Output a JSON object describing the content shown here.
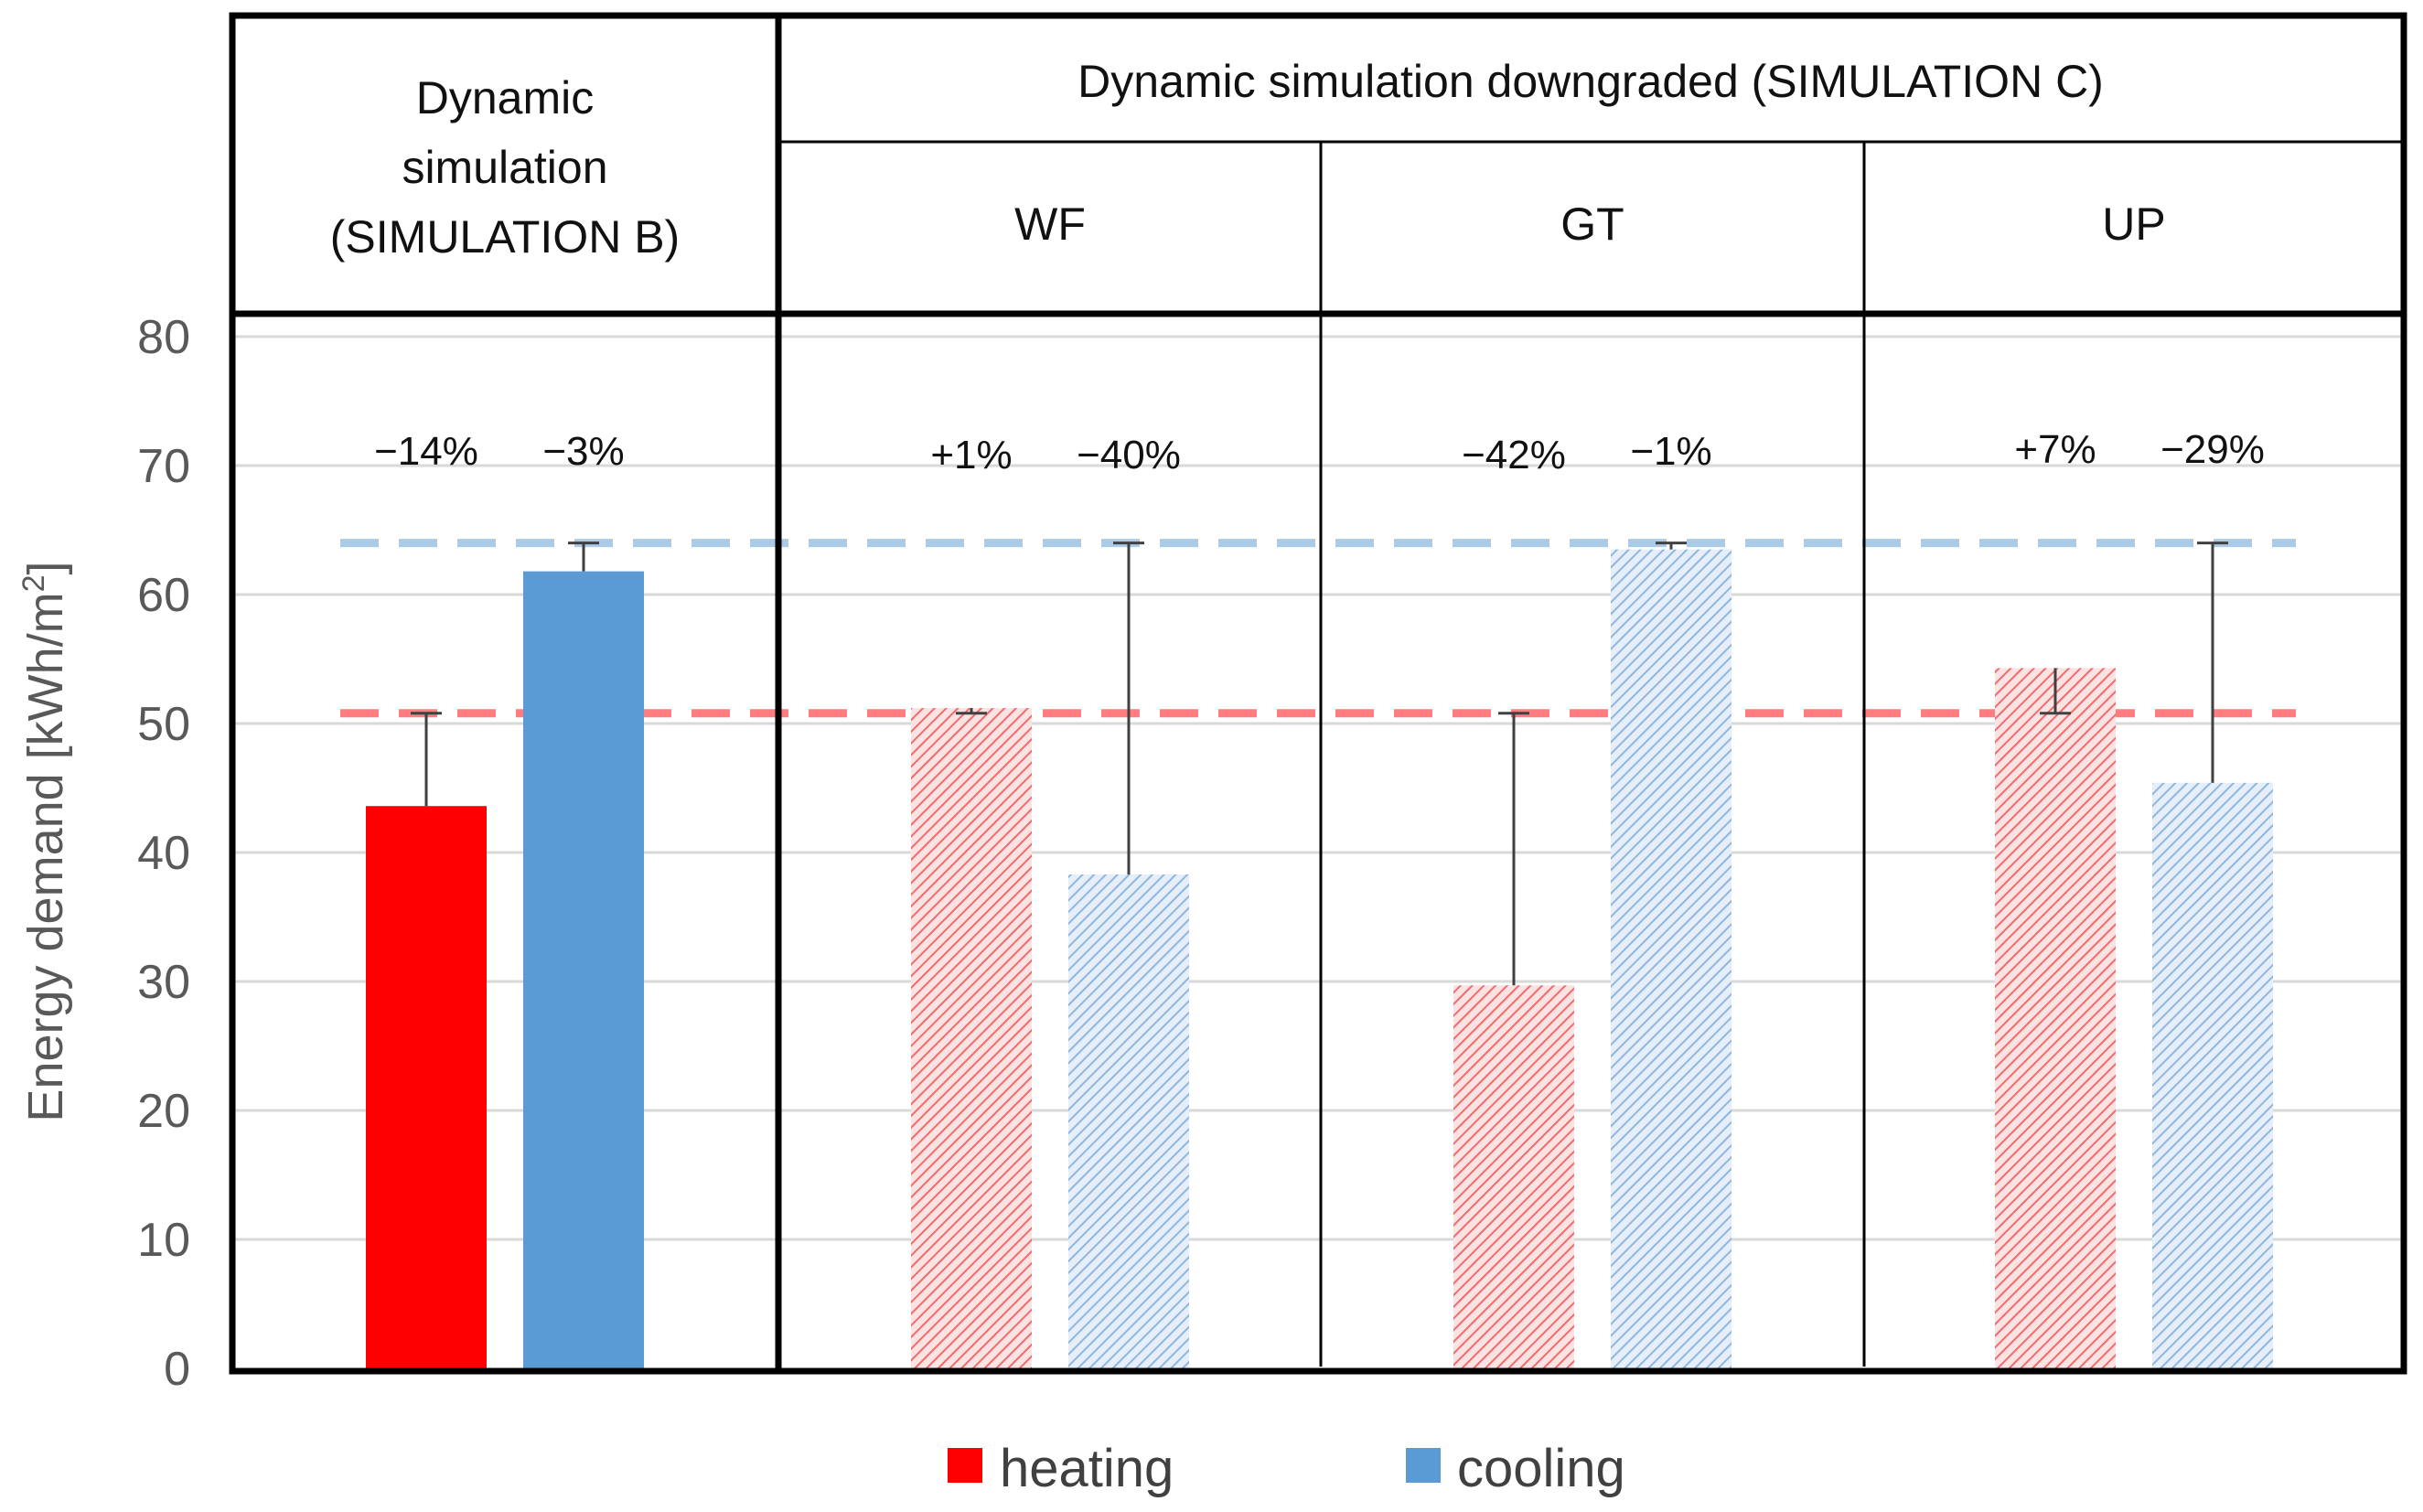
{
  "chart_data": {
    "type": "bar",
    "ylabel": "Energy demand [kWh/m",
    "ylabel_sup": "2",
    "ylabel_close": "]",
    "ylim": [
      0,
      80
    ],
    "yticks": [
      0,
      10,
      20,
      30,
      40,
      50,
      60,
      70,
      80
    ],
    "grid": true,
    "headers": {
      "group_b": [
        "Dynamic",
        "simulation",
        "(SIMULATION B)"
      ],
      "group_c": "Dynamic simulation downgraded (SIMULATION C)"
    },
    "categories": [
      "SIMULATION B",
      "WF",
      "GT",
      "UP"
    ],
    "column_labels": [
      "",
      "WF",
      "GT",
      "UP"
    ],
    "series": [
      {
        "name": "heating",
        "color": "#ff0000",
        "hatched": [
          false,
          true,
          true,
          true
        ],
        "values": [
          43.6,
          51.2,
          29.7,
          54.3
        ],
        "labels": [
          "−14%",
          "+1%",
          "−42%",
          "+7%"
        ]
      },
      {
        "name": "cooling",
        "color": "#5b9bd5",
        "hatched": [
          false,
          true,
          true,
          true
        ],
        "values": [
          61.8,
          38.3,
          63.5,
          45.4
        ],
        "labels": [
          "−3%",
          "−40%",
          "−1%",
          "−29%"
        ]
      }
    ],
    "reference_lines": [
      {
        "name": "heating reference",
        "value": 50.8,
        "color": "#ff7c80"
      },
      {
        "name": "cooling reference",
        "value": 64.0,
        "color": "#a9cbe8"
      }
    ],
    "legend": {
      "position": "bottom-center",
      "items": [
        "heating",
        "cooling"
      ]
    }
  }
}
